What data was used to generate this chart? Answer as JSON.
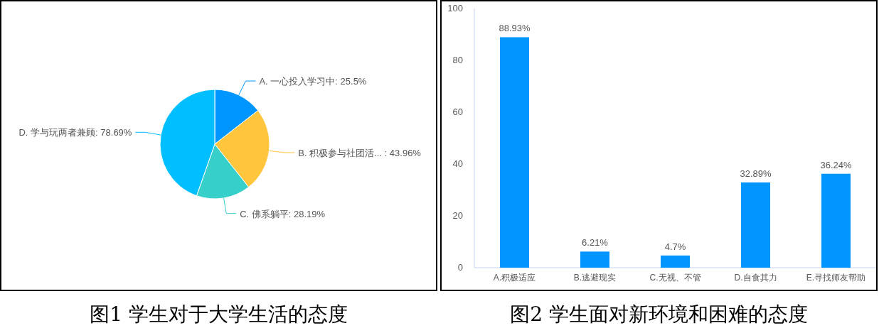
{
  "chart_data": [
    {
      "type": "pie",
      "title": "图1 学生对于大学生活的态度",
      "categories": [
        "A. 一心投入学习中",
        "B. 积极参与社团活... ",
        "C. 佛系躺平",
        "D. 学与玩两者兼顾"
      ],
      "values": [
        25.5,
        43.96,
        28.19,
        78.69
      ],
      "value_labels": [
        "25.5%",
        "43.96%",
        "28.19%",
        "78.69%"
      ],
      "colors": [
        "#0096ff",
        "#ffc53d",
        "#36cfc9",
        "#00bfff"
      ]
    },
    {
      "type": "bar",
      "title": "图2 学生面对新环境和困难的态度",
      "categories": [
        "A.积极适应",
        "B.逃避现实",
        "C.无视、不管",
        "D.自食其力",
        "E.寻找师友帮助"
      ],
      "values": [
        88.93,
        6.21,
        4.7,
        32.89,
        36.24
      ],
      "value_labels": [
        "88.93%",
        "6.21%",
        "4.7%",
        "32.89%",
        "36.24%"
      ],
      "color": "#0095ff",
      "ylim": [
        0,
        100
      ],
      "yticks": [
        0,
        20,
        40,
        60,
        80,
        100
      ],
      "grid": false
    }
  ]
}
